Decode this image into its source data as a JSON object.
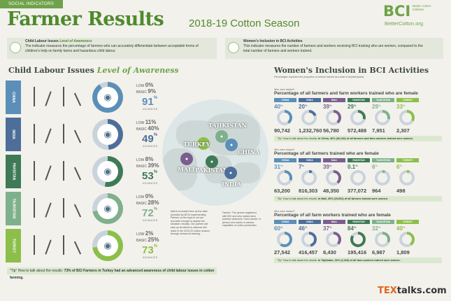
{
  "header": {
    "tag": "SOCIAL INDICATORS",
    "title": "Farmer Results",
    "season": "2018-19 Cotton Season",
    "logo": {
      "main": "BCI",
      "sub": "Better Cotton Initiative",
      "url": "BetterCotton.org"
    }
  },
  "intro_left": {
    "title_plain": "Child Labour Issues",
    "title_italic": "Level of Awareness",
    "text": "The indicator measures the percentage of farmers who can accurately differentiate between acceptable forms of children's help on family farms and hazardous child labour."
  },
  "intro_right": {
    "title": "Women's Inclusion in BCI Activities",
    "text": "This indicator measures the number of farmers and workers receiving BCI training who are women, compared to the total number of farmers and workers trained."
  },
  "left": {
    "heading_plain": "Child Labour Issues",
    "heading_italic": "Level of Awareness",
    "rows": [
      {
        "country": "CHINA",
        "color": "#5b8fb8",
        "low": "0",
        "basic": "9",
        "advanced": "91",
        "advanced_label": "ADVANCED",
        "ring_color": "#5b8fb8"
      },
      {
        "country": "INDIA",
        "color": "#4e6e9a",
        "low": "11",
        "basic": "40",
        "advanced": "49",
        "advanced_label": "ADVANCED",
        "ring_color": "#4e6e9a"
      },
      {
        "country": "PAKISTAN",
        "color": "#3f7a57",
        "low": "8",
        "basic": "39",
        "advanced": "53",
        "advanced_label": "ADVANCED",
        "ring_color": "#3f7a57"
      },
      {
        "country": "TAJIKISTAN",
        "color": "#7fb08c",
        "low": "0",
        "basic": "28",
        "advanced": "72",
        "advanced_label": "ADVANCED",
        "ring_color": "#7fb08c"
      },
      {
        "country": "TURKEY",
        "color": "#8cbf4a",
        "low": "2",
        "basic": "25",
        "advanced": "73",
        "advanced_label": "ADVANCED",
        "ring_color": "#8cbf4a"
      }
    ],
    "low_label": "LOW",
    "basic_label": "BASIC",
    "footer_q": "\"Tip\" How to talk about the results:",
    "footer": "73% of BCI Farmers in Turkey had an advanced awareness of child labour issues in cotton farming."
  },
  "map": {
    "labels": [
      "TAJIKISTAN",
      "TURKEY",
      "CHINA",
      "MALI",
      "PAKISTAN",
      "INDIA"
    ],
    "note_left": "Mali is excluded here as the data provided by BCI's implementing Partner on the topic is not yet accurate enough to assess the situation robustly. Our partner will step up its efforts to address this issue in the 2019-20 cotton season through enhanced training.",
    "note_right": "Farmer: The person registered with BCI and who makes farm practice decisions. Farm worker: A person who works in various capacities of cotton production."
  },
  "right": {
    "heading": "Women's Inclusion in BCI Activities",
    "subnote": "Percentages represent the proportion of women trained as a total of all participants.",
    "sections": [
      {
        "question": "Who were trained?",
        "title": "Percentage of all farmers and farm workers trained who are female",
        "cells": [
          {
            "country": "CHINA",
            "color": "#5b8fb8",
            "pct": "40",
            "total": "90,742"
          },
          {
            "country": "INDIA",
            "color": "#4e6e9a",
            "pct": "20",
            "total": "1,232,760"
          },
          {
            "country": "MALI",
            "color": "#7a5f8e",
            "pct": "39",
            "total": "56,780"
          },
          {
            "country": "PAKISTAN",
            "color": "#3f7a57",
            "pct": "29",
            "total": "572,488"
          },
          {
            "country": "TAJIKISTAN",
            "color": "#7fb08c",
            "pct": "29",
            "total": "7,951"
          },
          {
            "country": "TURKEY",
            "color": "#8cbf4a",
            "pct": "33",
            "total": "2,307"
          }
        ],
        "foot_q": "\"Tip\" How to talk about the results:",
        "foot": "In China, 40% (36,232) of all farmers and farm workers trained were women."
      },
      {
        "question": "Who were trained?",
        "title": "Percentage of all farmers trained who are female",
        "cells": [
          {
            "country": "CHINA",
            "color": "#5b8fb8",
            "pct": "31",
            "total": "63,200"
          },
          {
            "country": "INDIA",
            "color": "#4e6e9a",
            "pct": "7",
            "total": "816,303"
          },
          {
            "country": "MALI",
            "color": "#7a5f8e",
            "pct": "39",
            "total": "48,350"
          },
          {
            "country": "PAKISTAN",
            "color": "#3f7a57",
            "pct": "0.1",
            "total": "377,072"
          },
          {
            "country": "TAJIKISTAN",
            "color": "#7fb08c",
            "pct": "6",
            "total": "964"
          },
          {
            "country": "TURKEY",
            "color": "#8cbf4a",
            "pct": "6",
            "total": "498"
          }
        ],
        "foot_q": "\"Tip\" How to talk about the results:",
        "foot": "In Mali, 39% (19,002) of all farmers trained were women."
      },
      {
        "question": "Who were trained?",
        "title": "Percentage of all farm workers trained who are female",
        "cells": [
          {
            "country": "CHINA",
            "color": "#5b8fb8",
            "pct": "60",
            "total": "27,542"
          },
          {
            "country": "INDIA",
            "color": "#4e6e9a",
            "pct": "46",
            "total": "416,457"
          },
          {
            "country": "MALI",
            "color": "#7a5f8e",
            "pct": "37",
            "total": "8,430"
          },
          {
            "country": "PAKISTAN",
            "color": "#3f7a57",
            "pct": "84",
            "total": "195,416"
          },
          {
            "country": "TAJIKISTAN",
            "color": "#7fb08c",
            "pct": "32",
            "total": "6,987"
          },
          {
            "country": "TURKEY",
            "color": "#8cbf4a",
            "pct": "40",
            "total": "1,809"
          }
        ],
        "foot_q": "\"Tip\" How to talk about the results:",
        "foot": "In Tajikistan, 32% (2,263) of all farm workers trained were women."
      }
    ]
  },
  "footer_brand": {
    "tex": "TEX",
    "talks": "talks.com"
  }
}
